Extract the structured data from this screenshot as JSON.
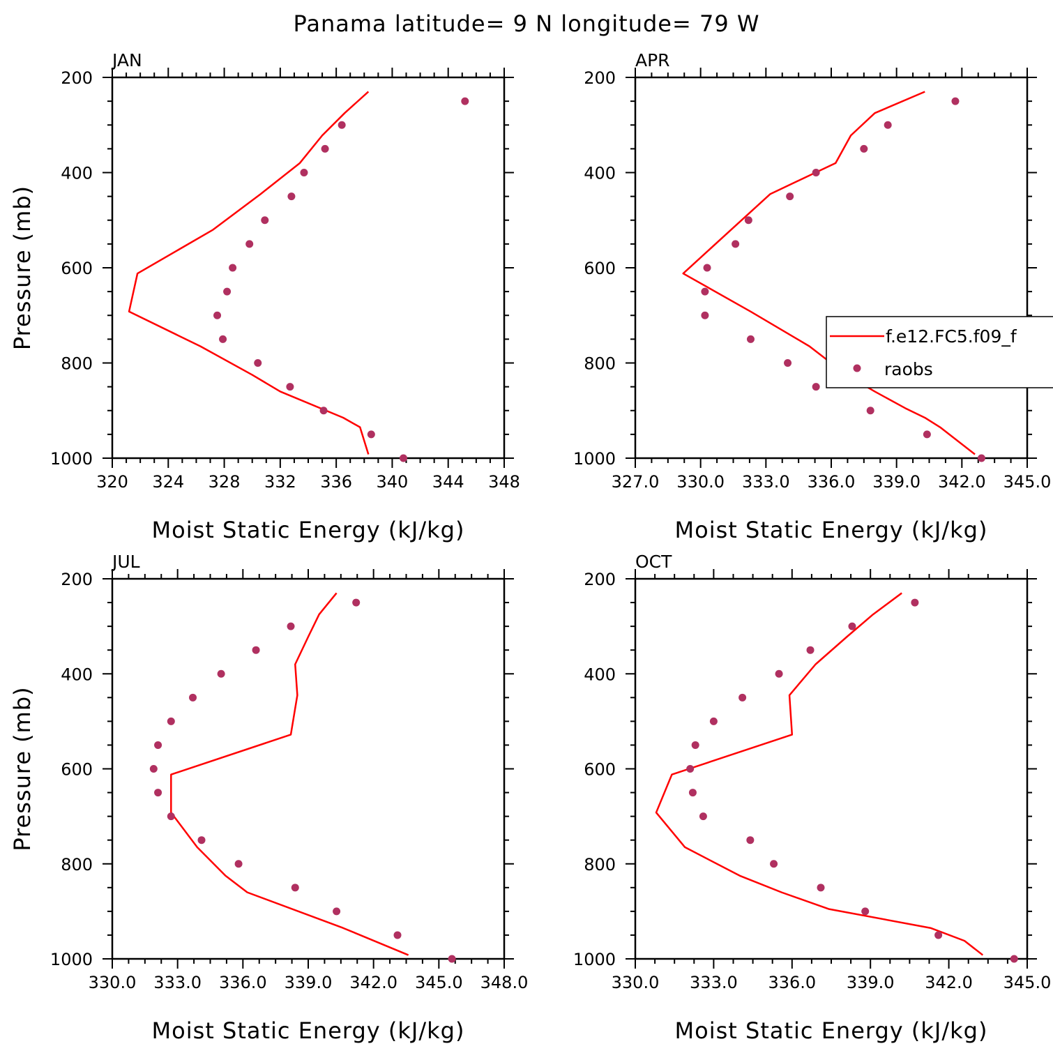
{
  "figure": {
    "title": "Panama  latitude= 9 N longitude= 79 W",
    "colors": {
      "model_line": "#ff0000",
      "obs_marker": "#b03060",
      "axes": "#000000"
    },
    "legend": {
      "placement": "right edge of APR panel",
      "entries": [
        {
          "label": "f.e12.FC5.f09_f",
          "kind": "line",
          "color": "#ff0000"
        },
        {
          "label": "raobs",
          "kind": "marker",
          "color": "#b03060"
        }
      ]
    }
  },
  "chart_data": [
    {
      "type": "line",
      "title": "JAN",
      "xlabel": "Moist Static Energy (kJ/kg)",
      "ylabel": "Pressure (mb)",
      "xlim": [
        320,
        348
      ],
      "ylim": [
        1000,
        200
      ],
      "x_ticks": [
        320,
        324,
        328,
        332,
        336,
        340,
        344,
        348
      ],
      "x_tick_labels": [
        "320",
        "324",
        "328",
        "332",
        "336",
        "340",
        "344",
        "348"
      ],
      "y_ticks": [
        200,
        400,
        600,
        800,
        1000
      ],
      "y_tick_labels": [
        "200",
        "400",
        "600",
        "800",
        "1000"
      ],
      "grid": false,
      "series": [
        {
          "name": "f.e12.FC5.f09_f",
          "style": "line",
          "pressure": [
            230,
            275,
            322,
            380,
            445,
            520,
            612,
            692,
            765,
            825,
            860,
            915,
            935,
            992
          ],
          "mse": [
            338.3,
            336.6,
            335.0,
            333.4,
            330.6,
            327.2,
            321.8,
            321.2,
            326.3,
            330.0,
            332.0,
            336.5,
            337.7,
            338.3
          ]
        },
        {
          "name": "raobs",
          "style": "scatter",
          "pressure": [
            250,
            300,
            350,
            400,
            450,
            500,
            550,
            600,
            650,
            700,
            750,
            800,
            850,
            900,
            950,
            1000
          ],
          "mse": [
            345.2,
            336.4,
            335.2,
            333.7,
            332.8,
            330.9,
            329.8,
            328.6,
            328.2,
            327.5,
            327.9,
            330.4,
            332.7,
            335.1,
            338.5,
            340.8
          ]
        }
      ]
    },
    {
      "type": "line",
      "title": "APR",
      "xlabel": "Moist Static Energy (kJ/kg)",
      "ylabel": "",
      "xlim": [
        327,
        345
      ],
      "ylim": [
        1000,
        200
      ],
      "x_ticks": [
        327,
        330,
        333,
        336,
        339,
        342,
        345
      ],
      "x_tick_labels": [
        "327.0",
        "330.0",
        "333.0",
        "336.0",
        "339.0",
        "342.0",
        "345.0"
      ],
      "y_ticks": [
        200,
        400,
        600,
        800,
        1000
      ],
      "y_tick_labels": [
        "200",
        "400",
        "600",
        "800",
        "1000"
      ],
      "grid": false,
      "series": [
        {
          "name": "f.e12.FC5.f09_f",
          "style": "line",
          "pressure": [
            230,
            275,
            322,
            380,
            445,
            520,
            612,
            692,
            765,
            825,
            860,
            895,
            915,
            935,
            992
          ],
          "mse": [
            340.3,
            338.0,
            336.9,
            336.2,
            333.2,
            331.4,
            329.2,
            332.3,
            335.0,
            336.7,
            338.0,
            339.4,
            340.3,
            341.0,
            342.6
          ]
        },
        {
          "name": "raobs",
          "style": "scatter",
          "pressure": [
            250,
            300,
            350,
            400,
            450,
            500,
            550,
            600,
            650,
            700,
            750,
            800,
            850,
            900,
            950,
            1000
          ],
          "mse": [
            341.7,
            338.6,
            337.5,
            335.3,
            334.1,
            332.2,
            331.6,
            330.3,
            330.2,
            330.2,
            332.3,
            334.0,
            335.3,
            337.8,
            340.4,
            342.9
          ]
        }
      ]
    },
    {
      "type": "line",
      "title": "JUL",
      "xlabel": "Moist Static Energy (kJ/kg)",
      "ylabel": "Pressure (mb)",
      "xlim": [
        330,
        348
      ],
      "ylim": [
        1000,
        200
      ],
      "x_ticks": [
        330,
        333,
        336,
        339,
        342,
        345,
        348
      ],
      "x_tick_labels": [
        "330.0",
        "333.0",
        "336.0",
        "339.0",
        "342.0",
        "345.0",
        "348.0"
      ],
      "y_ticks": [
        200,
        400,
        600,
        800,
        1000
      ],
      "y_tick_labels": [
        "200",
        "400",
        "600",
        "800",
        "1000"
      ],
      "grid": false,
      "series": [
        {
          "name": "f.e12.FC5.f09_f",
          "style": "line",
          "pressure": [
            230,
            275,
            322,
            380,
            445,
            528,
            612,
            692,
            765,
            825,
            860,
            935,
            992
          ],
          "mse": [
            340.3,
            339.5,
            339.0,
            338.4,
            338.5,
            338.2,
            332.7,
            332.7,
            333.9,
            335.2,
            336.2,
            340.6,
            343.6
          ]
        },
        {
          "name": "raobs",
          "style": "scatter",
          "pressure": [
            250,
            300,
            350,
            400,
            450,
            500,
            550,
            600,
            650,
            700,
            750,
            800,
            850,
            900,
            950,
            1000
          ],
          "mse": [
            341.2,
            338.2,
            336.6,
            335.0,
            333.7,
            332.7,
            332.1,
            331.9,
            332.1,
            332.7,
            334.1,
            335.8,
            338.4,
            340.3,
            343.1,
            345.6
          ]
        }
      ]
    },
    {
      "type": "line",
      "title": "OCT",
      "xlabel": "Moist Static Energy (kJ/kg)",
      "ylabel": "",
      "xlim": [
        330,
        345
      ],
      "ylim": [
        1000,
        200
      ],
      "x_ticks": [
        330,
        333,
        336,
        339,
        342,
        345
      ],
      "x_tick_labels": [
        "330.0",
        "333.0",
        "336.0",
        "339.0",
        "342.0",
        "345.0"
      ],
      "y_ticks": [
        200,
        400,
        600,
        800,
        1000
      ],
      "y_tick_labels": [
        "200",
        "400",
        "600",
        "800",
        "1000"
      ],
      "grid": false,
      "series": [
        {
          "name": "f.e12.FC5.f09_f",
          "style": "line",
          "pressure": [
            230,
            275,
            322,
            380,
            445,
            528,
            612,
            692,
            765,
            825,
            860,
            895,
            935,
            962,
            992
          ],
          "mse": [
            340.2,
            339.1,
            338.1,
            336.9,
            335.9,
            336.0,
            331.4,
            330.8,
            331.9,
            334.0,
            335.6,
            337.4,
            341.3,
            342.6,
            343.3
          ]
        },
        {
          "name": "raobs",
          "style": "scatter",
          "pressure": [
            250,
            300,
            350,
            400,
            450,
            500,
            550,
            600,
            650,
            700,
            750,
            800,
            850,
            900,
            950,
            1000
          ],
          "mse": [
            340.7,
            338.3,
            336.7,
            335.5,
            334.1,
            333.0,
            332.3,
            332.1,
            332.2,
            332.6,
            334.4,
            335.3,
            337.1,
            338.8,
            341.6,
            344.5
          ]
        }
      ]
    }
  ]
}
